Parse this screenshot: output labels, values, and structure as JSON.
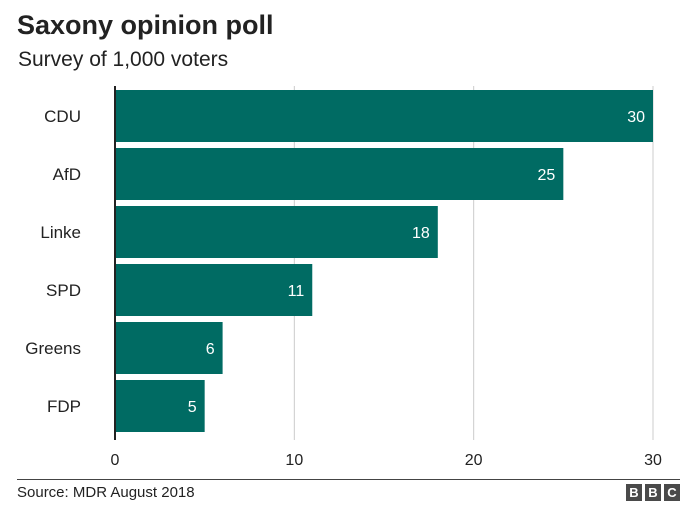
{
  "header": {
    "title": "Saxony opinion poll",
    "subtitle": "Survey of 1,000 voters"
  },
  "footer": {
    "source": "Source: MDR August 2018",
    "logo_letters": [
      "B",
      "B",
      "C"
    ]
  },
  "colors": {
    "bar": "#006b63",
    "grid": "#cccccc",
    "axis": "#222222",
    "bar_label": "#ffffff"
  },
  "chart_data": {
    "type": "bar",
    "orientation": "horizontal",
    "title": "Saxony opinion poll",
    "subtitle": "Survey of 1,000 voters",
    "categories": [
      "CDU",
      "AfD",
      "Linke",
      "SPD",
      "Greens",
      "FDP"
    ],
    "values": [
      30,
      25,
      18,
      11,
      6,
      5
    ],
    "xlabel": "",
    "ylabel": "",
    "xlim": [
      0,
      30
    ],
    "xticks": [
      0,
      10,
      20,
      30
    ],
    "grid": true,
    "data_labels": true,
    "source": "Source: MDR August 2018"
  }
}
